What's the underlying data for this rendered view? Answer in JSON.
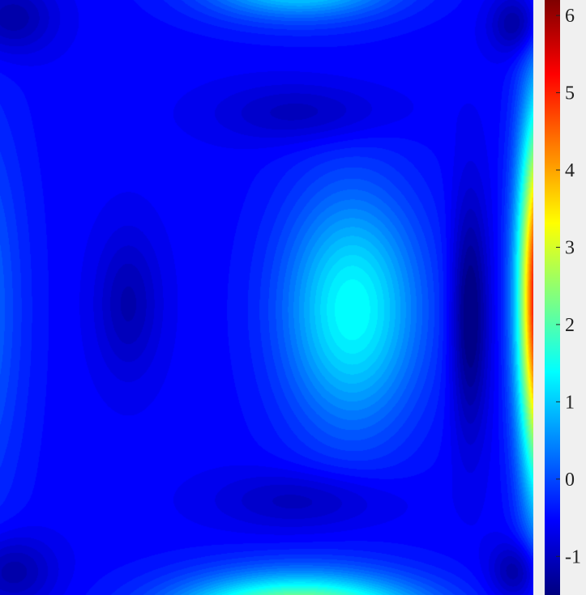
{
  "chart_data": {
    "type": "heatmap",
    "title": "",
    "xlabel": "",
    "ylabel": "",
    "colormap": "jet",
    "style": "filled-contour",
    "colorbar": {
      "range": [
        -1.5,
        6.2
      ],
      "ticks": [
        -1,
        0,
        1,
        2,
        3,
        4,
        5,
        6
      ],
      "tick_labels": [
        "-1",
        "0",
        "1",
        "2",
        "3",
        "4",
        "5",
        "6"
      ]
    },
    "features": [
      {
        "kind": "maximum",
        "location": "right-edge-middle",
        "value": 5.9
      },
      {
        "kind": "maximum",
        "location": "center-right",
        "value": 1.3
      },
      {
        "kind": "maximum",
        "location": "bottom-edge-center",
        "value": 3.2
      },
      {
        "kind": "maximum",
        "location": "top-edge-center",
        "value": 1.1
      },
      {
        "kind": "maximum",
        "location": "left-edge-middle",
        "value": 0.2
      },
      {
        "kind": "minimum",
        "location": "center-left",
        "value": -1.2
      },
      {
        "kind": "minimum",
        "location": "top-center",
        "value": -1.2
      },
      {
        "kind": "minimum",
        "location": "bottom-center",
        "value": -1.2
      },
      {
        "kind": "minimum",
        "location": "right-of-center",
        "value": -1.3
      },
      {
        "kind": "minimum",
        "location": "corners",
        "value": -1.3
      }
    ]
  }
}
